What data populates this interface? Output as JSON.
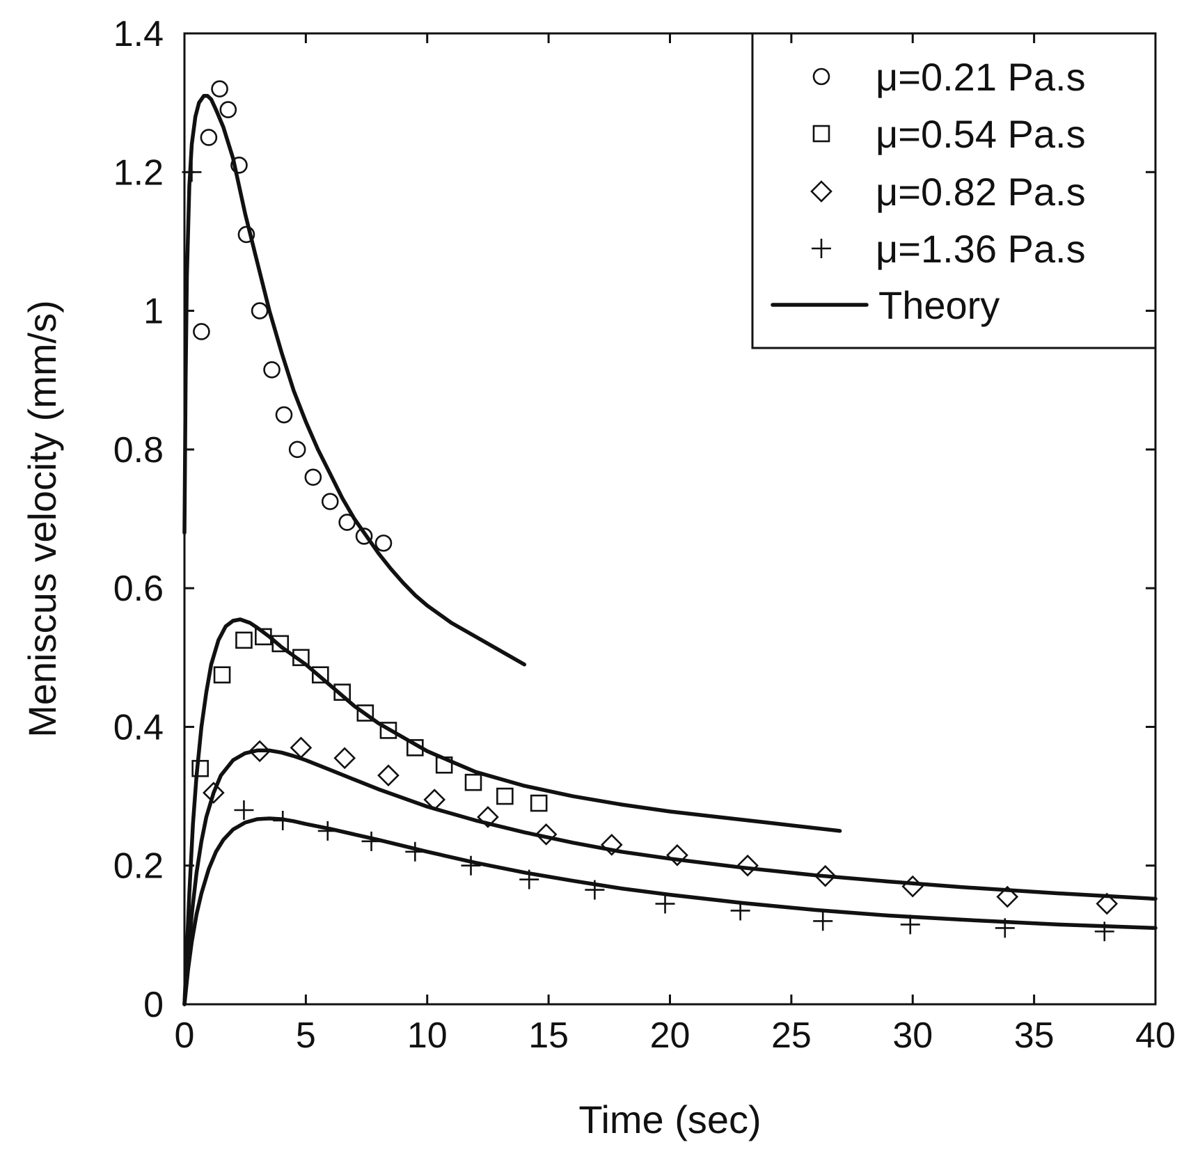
{
  "chart_data": {
    "type": "scatter",
    "title": "",
    "xlabel": "Time (sec)",
    "ylabel": "Meniscus velocity (mm/s)",
    "xlim": [
      0,
      40
    ],
    "ylim": [
      0,
      1.4
    ],
    "x_ticks": [
      0,
      5,
      10,
      15,
      20,
      25,
      30,
      35,
      40
    ],
    "x_tick_labels": [
      "0",
      "5",
      "10",
      "15",
      "20",
      "25",
      "30",
      "35",
      "40"
    ],
    "y_ticks": [
      0,
      0.2,
      0.4,
      0.6,
      0.8,
      1.0,
      1.2,
      1.4
    ],
    "y_tick_labels": [
      "0",
      "0.2",
      "0.4",
      "0.6",
      "0.8",
      "1",
      "1.2",
      "1.4"
    ],
    "grid": false,
    "legend_position": "top-right",
    "series": [
      {
        "name": "μ=0.21 Pa.s",
        "marker": "circle",
        "x": [
          0.7,
          1.0,
          1.45,
          1.8,
          2.25,
          2.55,
          3.1,
          3.6,
          4.1,
          4.65,
          5.3,
          6.0,
          6.7,
          7.4,
          8.2
        ],
        "y": [
          0.97,
          1.25,
          1.32,
          1.29,
          1.21,
          1.11,
          1.0,
          0.915,
          0.85,
          0.8,
          0.76,
          0.725,
          0.695,
          0.675,
          0.665
        ]
      },
      {
        "name": "μ=0.54 Pa.s",
        "marker": "square",
        "x": [
          0.65,
          1.55,
          2.45,
          3.25,
          3.95,
          4.8,
          5.6,
          6.5,
          7.45,
          8.4,
          9.5,
          10.7,
          11.9,
          13.2,
          14.6
        ],
        "y": [
          0.34,
          0.475,
          0.525,
          0.53,
          0.52,
          0.5,
          0.475,
          0.45,
          0.42,
          0.395,
          0.37,
          0.345,
          0.32,
          0.3,
          0.29
        ]
      },
      {
        "name": "μ=0.82 Pa.s",
        "marker": "diamond",
        "x": [
          1.2,
          3.1,
          4.8,
          6.6,
          8.4,
          10.3,
          12.5,
          14.9,
          17.6,
          20.3,
          23.2,
          26.4,
          30.0,
          33.9,
          38.0
        ],
        "y": [
          0.305,
          0.365,
          0.37,
          0.355,
          0.33,
          0.295,
          0.27,
          0.245,
          0.23,
          0.215,
          0.2,
          0.185,
          0.17,
          0.155,
          0.145
        ]
      },
      {
        "name": "μ=1.36 Pa.s",
        "marker": "plus",
        "x": [
          0.3,
          2.45,
          4.05,
          5.9,
          7.7,
          9.5,
          11.8,
          14.2,
          16.9,
          19.8,
          22.9,
          26.3,
          29.9,
          33.8,
          37.9
        ],
        "y": [
          1.2,
          0.28,
          0.265,
          0.25,
          0.235,
          0.22,
          0.2,
          0.18,
          0.165,
          0.145,
          0.135,
          0.12,
          0.115,
          0.11,
          0.105
        ]
      }
    ],
    "theory": {
      "name": "Theory",
      "curves": [
        {
          "x": [
            0,
            0.05,
            0.1,
            0.2,
            0.3,
            0.45,
            0.6,
            0.8,
            0.95,
            1.1,
            1.3,
            1.6,
            2.0,
            2.5,
            3.0,
            3.5,
            4.0,
            4.5,
            5.0,
            5.5,
            6.0,
            6.5,
            7.0,
            7.5,
            8.0,
            8.5,
            9.0,
            9.5,
            10.0,
            11.0,
            12.0,
            13.0,
            14.0
          ],
          "y": [
            0.68,
            0.9,
            1.05,
            1.18,
            1.24,
            1.28,
            1.3,
            1.31,
            1.31,
            1.305,
            1.29,
            1.265,
            1.22,
            1.14,
            1.07,
            1.0,
            0.94,
            0.885,
            0.84,
            0.8,
            0.765,
            0.73,
            0.7,
            0.675,
            0.65,
            0.628,
            0.608,
            0.59,
            0.575,
            0.55,
            0.53,
            0.51,
            0.49
          ]
        },
        {
          "x": [
            0,
            0.1,
            0.2,
            0.35,
            0.5,
            0.7,
            0.9,
            1.1,
            1.4,
            1.7,
            2.0,
            2.3,
            2.7,
            3.0,
            3.5,
            4.0,
            5.0,
            6.0,
            7.0,
            8.0,
            9.0,
            10.0,
            11.0,
            12.0,
            14.0,
            16.0,
            18.0,
            20.0,
            22.0,
            24.0,
            27.0
          ],
          "y": [
            0.0,
            0.08,
            0.16,
            0.26,
            0.33,
            0.4,
            0.45,
            0.49,
            0.525,
            0.545,
            0.553,
            0.555,
            0.55,
            0.543,
            0.53,
            0.515,
            0.49,
            0.46,
            0.43,
            0.405,
            0.385,
            0.365,
            0.35,
            0.335,
            0.315,
            0.3,
            0.288,
            0.278,
            0.27,
            0.262,
            0.25
          ]
        },
        {
          "x": [
            0,
            0.15,
            0.3,
            0.5,
            0.7,
            0.9,
            1.2,
            1.5,
            2.0,
            2.5,
            3.0,
            3.5,
            4.0,
            4.5,
            5.0,
            6.0,
            7.0,
            8.0,
            10.0,
            12.0,
            14.0,
            16.0,
            18.0,
            20.0,
            23.0,
            26.0,
            29.0,
            32.0,
            36.0,
            40.0
          ],
          "y": [
            0.0,
            0.07,
            0.13,
            0.19,
            0.235,
            0.27,
            0.305,
            0.33,
            0.352,
            0.362,
            0.366,
            0.366,
            0.363,
            0.358,
            0.352,
            0.338,
            0.324,
            0.31,
            0.285,
            0.265,
            0.248,
            0.233,
            0.22,
            0.21,
            0.197,
            0.186,
            0.177,
            0.169,
            0.16,
            0.152
          ]
        },
        {
          "x": [
            0,
            0.15,
            0.3,
            0.5,
            0.7,
            1.0,
            1.3,
            1.6,
            2.0,
            2.5,
            3.0,
            3.5,
            4.0,
            4.5,
            5.0,
            6.0,
            7.0,
            8.0,
            10.0,
            12.0,
            14.0,
            16.0,
            18.0,
            20.0,
            23.0,
            26.0,
            29.0,
            32.0,
            36.0,
            40.0
          ],
          "y": [
            0.0,
            0.05,
            0.09,
            0.13,
            0.16,
            0.195,
            0.22,
            0.237,
            0.252,
            0.262,
            0.267,
            0.268,
            0.267,
            0.264,
            0.26,
            0.253,
            0.245,
            0.237,
            0.22,
            0.204,
            0.19,
            0.178,
            0.167,
            0.158,
            0.146,
            0.136,
            0.128,
            0.122,
            0.115,
            0.11
          ]
        }
      ]
    }
  }
}
